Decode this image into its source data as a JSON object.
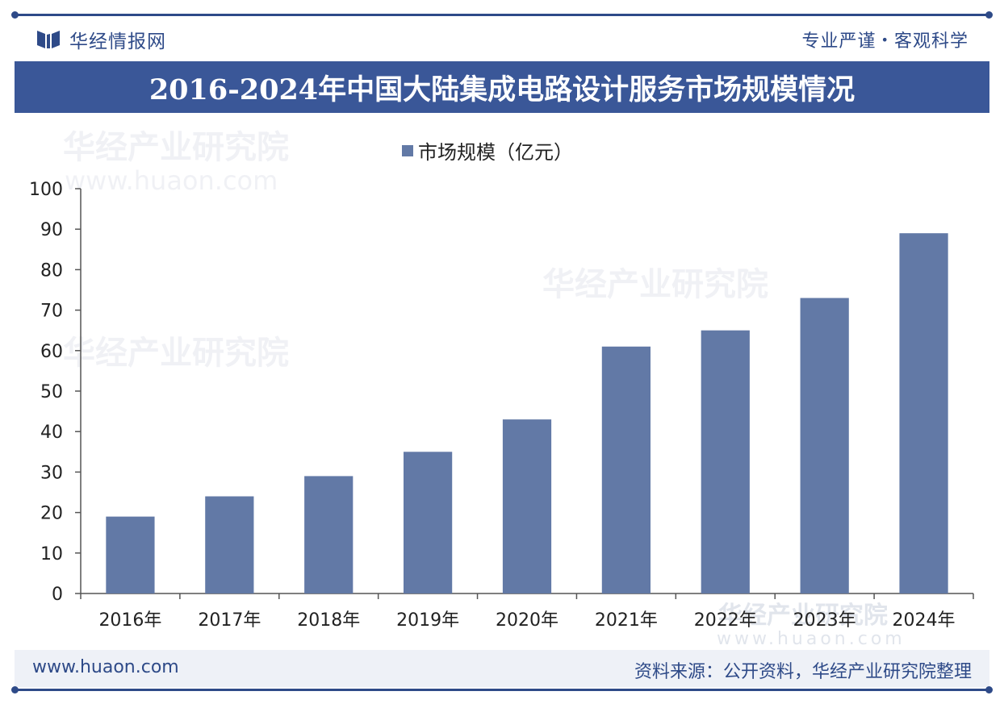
{
  "header": {
    "brand_name": "华经情报网",
    "slogan_left": "专业严谨",
    "slogan_dot": "•",
    "slogan_right": "客观科学"
  },
  "title": "2016-2024年中国大陆集成电路设计服务市场规模情况",
  "footer": {
    "site": "www.huaon.com",
    "source": "资料来源：公开资料，华经产业研究院整理"
  },
  "watermark": {
    "name": "华经产业研究院",
    "url": "www.huaon.com"
  },
  "colors": {
    "brand": "#2e4a88",
    "title_bar": "#3a5798",
    "bar": "#6279a6"
  },
  "chart_data": {
    "type": "bar",
    "title": "2016-2024年中国大陆集成电路设计服务市场规模情况",
    "categories": [
      "2016年",
      "2017年",
      "2018年",
      "2019年",
      "2020年",
      "2021年",
      "2022年",
      "2023年",
      "2024年"
    ],
    "series": [
      {
        "name": "市场规模（亿元）",
        "values": [
          19,
          24,
          29,
          35,
          43,
          61,
          65,
          73,
          89
        ]
      }
    ],
    "ylim": [
      0,
      100
    ],
    "yticks": [
      0,
      10,
      20,
      30,
      40,
      50,
      60,
      70,
      80,
      90,
      100
    ],
    "xlabel": "",
    "ylabel": "",
    "grid": false,
    "legend": "top-center"
  }
}
